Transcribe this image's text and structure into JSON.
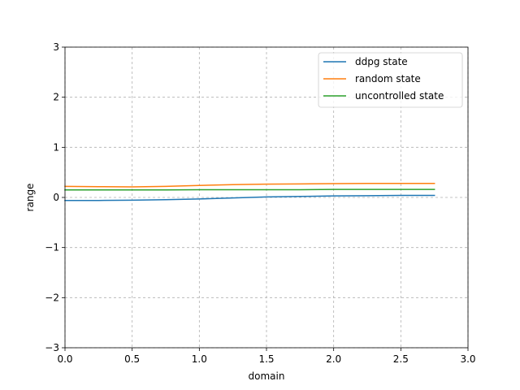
{
  "chart_data": {
    "type": "line",
    "title": "",
    "xlabel": "domain",
    "ylabel": "range",
    "xlim": [
      0.0,
      3.0
    ],
    "ylim": [
      -3,
      3
    ],
    "xticks": [
      0.0,
      0.5,
      1.0,
      1.5,
      2.0,
      2.5,
      3.0
    ],
    "xtick_labels": [
      "0.0",
      "0.5",
      "1.0",
      "1.5",
      "2.0",
      "2.5",
      "3.0"
    ],
    "yticks": [
      -3,
      -2,
      -1,
      0,
      1,
      2,
      3
    ],
    "ytick_labels": [
      "−3",
      "−2",
      "−1",
      "0",
      "1",
      "2",
      "3"
    ],
    "grid": true,
    "legend_position": "top-right",
    "series": [
      {
        "name": "ddpg state",
        "color": "#1f77b4",
        "x": [
          0.0,
          0.25,
          0.5,
          0.75,
          1.0,
          1.25,
          1.5,
          1.75,
          2.0,
          2.25,
          2.5,
          2.75
        ],
        "y": [
          -0.06,
          -0.06,
          -0.055,
          -0.045,
          -0.03,
          -0.01,
          0.01,
          0.02,
          0.03,
          0.035,
          0.04,
          0.04
        ]
      },
      {
        "name": "random state",
        "color": "#ff7f0e",
        "x": [
          0.0,
          0.25,
          0.5,
          0.75,
          1.0,
          1.25,
          1.5,
          1.75,
          2.0,
          2.25,
          2.5,
          2.75
        ],
        "y": [
          0.22,
          0.215,
          0.21,
          0.22,
          0.24,
          0.255,
          0.265,
          0.27,
          0.275,
          0.28,
          0.28,
          0.28
        ]
      },
      {
        "name": "uncontrolled state",
        "color": "#2ca02c",
        "x": [
          0.0,
          0.25,
          0.5,
          0.75,
          1.0,
          1.25,
          1.5,
          1.75,
          2.0,
          2.25,
          2.5,
          2.75
        ],
        "y": [
          0.15,
          0.15,
          0.15,
          0.15,
          0.155,
          0.155,
          0.155,
          0.155,
          0.16,
          0.16,
          0.16,
          0.16
        ]
      }
    ]
  }
}
